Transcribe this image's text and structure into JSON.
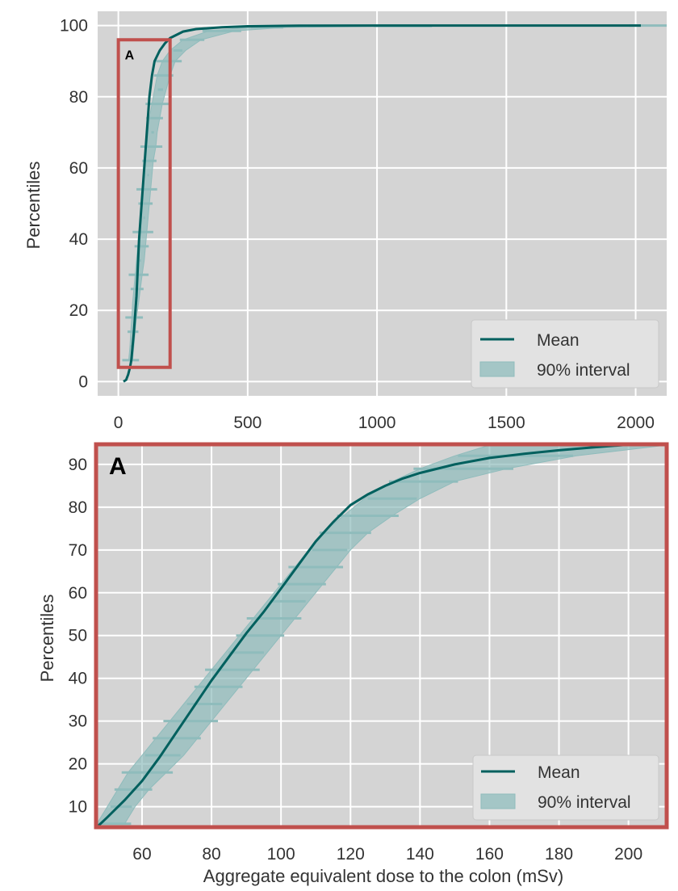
{
  "colors": {
    "mean_line": "#00605e",
    "interval_fill": "#8fbcbc",
    "plot_background": "#d4d4d4",
    "grid": "#ffffff",
    "highlight_box": "#c0504d"
  },
  "chart_data": [
    {
      "type": "line",
      "panel": "top",
      "title": "",
      "xlabel": "",
      "ylabel": "Percentiles",
      "xlim": [
        -80,
        2120
      ],
      "ylim": [
        -4,
        104
      ],
      "xticks": [
        "0",
        "500",
        "1000",
        "1500",
        "2000"
      ],
      "xtick_values": [
        0,
        500,
        1000,
        1500,
        2000
      ],
      "yticks": [
        "0",
        "20",
        "40",
        "60",
        "80",
        "100"
      ],
      "ytick_values": [
        0,
        20,
        40,
        60,
        80,
        100
      ],
      "grid": true,
      "legend": {
        "position": "bottom-right",
        "entries": [
          "Mean",
          "90% interval"
        ]
      },
      "inset_box_label": "A",
      "inset_box": {
        "x_range": [
          0,
          200
        ],
        "y_range": [
          4,
          96
        ]
      },
      "series": [
        {
          "name": "Mean",
          "x": [
            20,
            30,
            38,
            45,
            50,
            60,
            70,
            80,
            90,
            100,
            110,
            120,
            130,
            140,
            160,
            180,
            200,
            250,
            300,
            400,
            500,
            700,
            1000,
            1500,
            2020
          ],
          "y": [
            0,
            0.5,
            2,
            4,
            6,
            14,
            24,
            40,
            50,
            60,
            70,
            80,
            86,
            90,
            93,
            95,
            96.5,
            98.3,
            99,
            99.5,
            99.8,
            99.95,
            100,
            100,
            100
          ]
        },
        {
          "name": "90% interval",
          "x_low": [
            40,
            45,
            48,
            52,
            55,
            60,
            65,
            70,
            75,
            80,
            85,
            90,
            95,
            100,
            105,
            110,
            115,
            120,
            130,
            140,
            150,
            170,
            200,
            250,
            350,
            500,
            1000,
            2000
          ],
          "x_high": [
            55,
            60,
            65,
            70,
            78,
            85,
            92,
            100,
            105,
            110,
            115,
            120,
            125,
            130,
            135,
            145,
            150,
            160,
            170,
            185,
            200,
            220,
            260,
            320,
            450,
            650,
            1200,
            2110
          ],
          "y": [
            6,
            10,
            14,
            18,
            22,
            26,
            30,
            34,
            38,
            42,
            46,
            50,
            54,
            58,
            62,
            66,
            70,
            74,
            78,
            82,
            86,
            90,
            93,
            96,
            98.5,
            99.5,
            99.9,
            100
          ]
        }
      ]
    },
    {
      "type": "line",
      "panel": "bottom",
      "title": "",
      "panel_label": "A",
      "xlabel": "Aggregate equivalent dose to the colon (mSv)",
      "ylabel": "Percentiles",
      "xlim": [
        47,
        211
      ],
      "ylim": [
        5.2,
        94.7
      ],
      "xticks": [
        "60",
        "80",
        "100",
        "120",
        "140",
        "160",
        "180",
        "200"
      ],
      "xtick_values": [
        60,
        80,
        100,
        120,
        140,
        160,
        180,
        200
      ],
      "yticks": [
        "10",
        "20",
        "30",
        "40",
        "50",
        "60",
        "70",
        "80",
        "90"
      ],
      "ytick_values": [
        10,
        20,
        30,
        40,
        50,
        60,
        70,
        80,
        90
      ],
      "grid": true,
      "legend": {
        "position": "bottom-right",
        "entries": [
          "Mean",
          "90% interval"
        ]
      },
      "series": [
        {
          "name": "Mean",
          "x": [
            47,
            50,
            55,
            60,
            65,
            70,
            75,
            80,
            85,
            90,
            95,
            100,
            105,
            110,
            115,
            120,
            125,
            130,
            135,
            140,
            150,
            160,
            170,
            180,
            190,
            200,
            211
          ],
          "y": [
            5.2,
            7.5,
            11.5,
            16,
            21.5,
            27.5,
            33.5,
            39.5,
            45,
            50.5,
            55.5,
            61,
            66.5,
            72,
            76.5,
            80.5,
            83,
            85,
            86.7,
            88,
            90,
            91.5,
            92.5,
            93.3,
            94,
            94.6,
            95
          ]
        },
        {
          "name": "90% interval",
          "x_low": [
            47,
            50,
            53,
            56,
            60,
            64,
            68,
            72,
            76,
            80,
            84,
            88,
            92,
            96,
            100,
            104,
            108,
            112,
            118,
            124,
            132,
            140,
            150,
            160
          ],
          "x_high": [
            55,
            58,
            62,
            67,
            72,
            76,
            80,
            84,
            88,
            92,
            96,
            100,
            104,
            108,
            112,
            116,
            120,
            125,
            132,
            140,
            150,
            165,
            185,
            211
          ],
          "y": [
            6,
            10,
            14,
            18,
            22,
            26,
            30,
            34,
            38,
            42,
            46,
            50,
            54,
            58,
            62,
            66,
            70,
            74,
            78,
            82,
            86,
            89,
            92,
            94.5
          ]
        }
      ]
    }
  ]
}
